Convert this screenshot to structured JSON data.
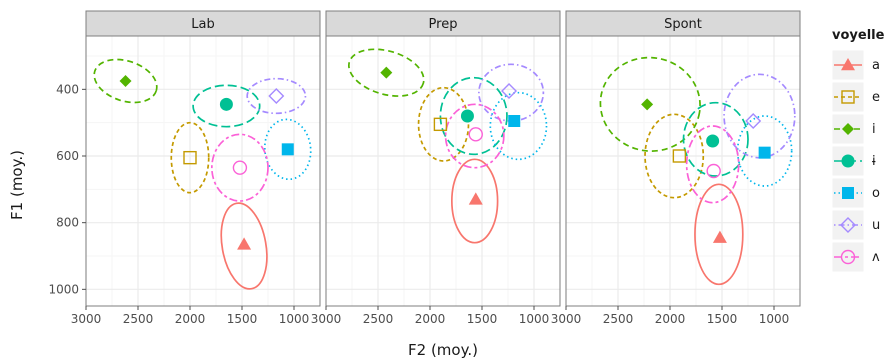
{
  "chart_data": {
    "type": "scatter",
    "xlabel": "F2 (moy.)",
    "ylabel": "F1 (moy.)",
    "x_reversed": true,
    "y_reversed": true,
    "xlim": [
      3000,
      750
    ],
    "ylim": [
      1050,
      240
    ],
    "x_ticks": [
      3000,
      2500,
      2000,
      1500,
      1000
    ],
    "y_ticks": [
      400,
      600,
      800,
      1000
    ],
    "grid": true,
    "legend_title": "voyelle",
    "legend_position": "right",
    "panels": [
      {
        "name": "Lab",
        "points": [
          {
            "vowel": "a",
            "x": 1480,
            "y": 865
          },
          {
            "vowel": "e",
            "x": 2000,
            "y": 605
          },
          {
            "vowel": "i",
            "x": 2620,
            "y": 375
          },
          {
            "vowel": "ɨ",
            "x": 1650,
            "y": 445
          },
          {
            "vowel": "o",
            "x": 1060,
            "y": 580
          },
          {
            "vowel": "u",
            "x": 1170,
            "y": 420
          },
          {
            "vowel": "ʌ",
            "x": 1520,
            "y": 635
          }
        ],
        "ellipses": [
          {
            "vowel": "a",
            "cx": 1480,
            "cy": 870,
            "rx": 210,
            "ry": 130,
            "rot": -10
          },
          {
            "vowel": "e",
            "cx": 2000,
            "cy": 605,
            "rx": 180,
            "ry": 105,
            "rot": 0
          },
          {
            "vowel": "i",
            "cx": 2620,
            "cy": 375,
            "rx": 310,
            "ry": 60,
            "rot": 18
          },
          {
            "vowel": "ɨ",
            "cx": 1650,
            "cy": 450,
            "rx": 320,
            "ry": 62,
            "rot": 0
          },
          {
            "vowel": "o",
            "cx": 1060,
            "cy": 580,
            "rx": 220,
            "ry": 90,
            "rot": -6
          },
          {
            "vowel": "u",
            "cx": 1170,
            "cy": 420,
            "rx": 280,
            "ry": 52,
            "rot": 0
          },
          {
            "vowel": "ʌ",
            "cx": 1520,
            "cy": 635,
            "rx": 270,
            "ry": 100,
            "rot": 0
          }
        ]
      },
      {
        "name": "Prep",
        "points": [
          {
            "vowel": "a",
            "x": 1560,
            "y": 730
          },
          {
            "vowel": "e",
            "x": 1900,
            "y": 505
          },
          {
            "vowel": "i",
            "x": 2420,
            "y": 350
          },
          {
            "vowel": "ɨ",
            "x": 1640,
            "y": 480
          },
          {
            "vowel": "o",
            "x": 1190,
            "y": 495
          },
          {
            "vowel": "u",
            "x": 1240,
            "y": 405
          },
          {
            "vowel": "ʌ",
            "x": 1560,
            "y": 535
          }
        ],
        "ellipses": [
          {
            "vowel": "a",
            "cx": 1570,
            "cy": 735,
            "rx": 220,
            "ry": 125,
            "rot": 0
          },
          {
            "vowel": "e",
            "cx": 1870,
            "cy": 505,
            "rx": 240,
            "ry": 110,
            "rot": 0
          },
          {
            "vowel": "i",
            "cx": 2420,
            "cy": 350,
            "rx": 370,
            "ry": 65,
            "rot": 16
          },
          {
            "vowel": "ɨ",
            "cx": 1580,
            "cy": 480,
            "rx": 320,
            "ry": 115,
            "rot": 0
          },
          {
            "vowel": "o",
            "cx": 1150,
            "cy": 510,
            "rx": 270,
            "ry": 100,
            "rot": 0
          },
          {
            "vowel": "u",
            "cx": 1220,
            "cy": 410,
            "rx": 310,
            "ry": 85,
            "rot": 0
          },
          {
            "vowel": "ʌ",
            "cx": 1570,
            "cy": 540,
            "rx": 280,
            "ry": 95,
            "rot": 0
          }
        ]
      },
      {
        "name": "Spont",
        "points": [
          {
            "vowel": "a",
            "x": 1520,
            "y": 845
          },
          {
            "vowel": "e",
            "x": 1910,
            "y": 600
          },
          {
            "vowel": "i",
            "x": 2220,
            "y": 445
          },
          {
            "vowel": "ɨ",
            "x": 1590,
            "y": 555
          },
          {
            "vowel": "o",
            "x": 1090,
            "y": 590
          },
          {
            "vowel": "u",
            "x": 1200,
            "y": 495
          },
          {
            "vowel": "ʌ",
            "x": 1580,
            "y": 645
          }
        ],
        "ellipses": [
          {
            "vowel": "a",
            "cx": 1530,
            "cy": 835,
            "rx": 230,
            "ry": 150,
            "rot": 0
          },
          {
            "vowel": "e",
            "cx": 1960,
            "cy": 600,
            "rx": 280,
            "ry": 125,
            "rot": 0
          },
          {
            "vowel": "i",
            "cx": 2190,
            "cy": 445,
            "rx": 480,
            "ry": 140,
            "rot": 10
          },
          {
            "vowel": "ɨ",
            "cx": 1560,
            "cy": 550,
            "rx": 310,
            "ry": 110,
            "rot": 0
          },
          {
            "vowel": "o",
            "cx": 1090,
            "cy": 585,
            "rx": 260,
            "ry": 105,
            "rot": 0
          },
          {
            "vowel": "u",
            "cx": 1140,
            "cy": 480,
            "rx": 340,
            "ry": 125,
            "rot": 0
          },
          {
            "vowel": "ʌ",
            "cx": 1590,
            "cy": 625,
            "rx": 250,
            "ry": 115,
            "rot": 0
          }
        ]
      }
    ]
  },
  "legend": {
    "title": "voyelle",
    "items": [
      {
        "label": "a",
        "color": "#F8766D",
        "shape": "triangle",
        "dash": "solid"
      },
      {
        "label": "e",
        "color": "#C49A00",
        "shape": "square-open",
        "dash": "dashed-short"
      },
      {
        "label": "i",
        "color": "#53B400",
        "shape": "diamond",
        "dash": "dashed"
      },
      {
        "label": "ɨ",
        "color": "#00C094",
        "shape": "circle",
        "dash": "longdash"
      },
      {
        "label": "o",
        "color": "#00B6EB",
        "shape": "square",
        "dash": "dotted"
      },
      {
        "label": "u",
        "color": "#A58AFF",
        "shape": "diamond-open",
        "dash": "dotdash"
      },
      {
        "label": "ʌ",
        "color": "#FB61D7",
        "shape": "circle-open",
        "dash": "twodash"
      }
    ]
  },
  "style": {
    "panel_bg": "#ffffff",
    "panel_border": "#7f7f7f",
    "strip_bg": "#d9d9d9",
    "grid_major": "#ebebeb",
    "grid_minor": "#f5f5f5"
  }
}
